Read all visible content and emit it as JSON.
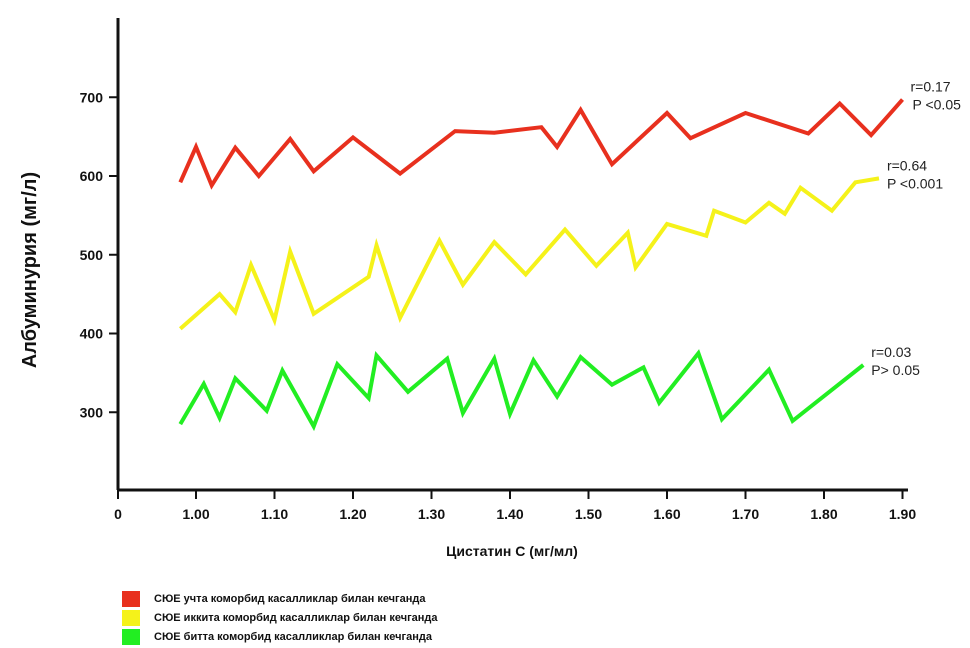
{
  "chart_data": {
    "type": "line",
    "title": "",
    "xlabel": "Цистатин С (мг/мл)",
    "ylabel": "Албуминурия (мг/л)",
    "xlim": [
      0.9,
      1.9
    ],
    "ylim": [
      200,
      800
    ],
    "x_ticks": [
      "0",
      "1.00",
      "1.10",
      "1.20",
      "1.30",
      "1.40",
      "1.50",
      "1.60",
      "1.70",
      "1.80",
      "1.90"
    ],
    "y_ticks": [
      300,
      400,
      500,
      600,
      700
    ],
    "grid": false,
    "legend_position": "bottom-left",
    "series": [
      {
        "name": "СЮЕ учта коморбид касалликлар билан кечганда",
        "color": "#e8301e",
        "annotation": [
          "r=0.17",
          "P <0.05"
        ],
        "x": [
          0.98,
          1.0,
          1.02,
          1.05,
          1.08,
          1.12,
          1.15,
          1.2,
          1.26,
          1.33,
          1.38,
          1.44,
          1.46,
          1.49,
          1.53,
          1.6,
          1.63,
          1.7,
          1.78,
          1.82,
          1.86,
          1.9
        ],
        "y": [
          592,
          637,
          588,
          636,
          600,
          647,
          606,
          649,
          603,
          657,
          655,
          662,
          637,
          684,
          615,
          680,
          648,
          680,
          654,
          692,
          652,
          697
        ]
      },
      {
        "name": "СЮЕ иккита коморбид касалликлар билан кечганда",
        "color": "#f5f21a",
        "annotation": [
          "r=0.64",
          "P <0.001"
        ],
        "x": [
          0.98,
          1.03,
          1.05,
          1.07,
          1.1,
          1.12,
          1.15,
          1.22,
          1.23,
          1.26,
          1.31,
          1.34,
          1.38,
          1.42,
          1.47,
          1.51,
          1.55,
          1.56,
          1.6,
          1.65,
          1.66,
          1.7,
          1.73,
          1.75,
          1.77,
          1.81,
          1.84,
          1.87
        ],
        "y": [
          406,
          450,
          427,
          487,
          417,
          504,
          425,
          472,
          512,
          420,
          518,
          462,
          516,
          475,
          532,
          486,
          528,
          484,
          539,
          524,
          556,
          541,
          566,
          552,
          585,
          556,
          592,
          597
        ]
      },
      {
        "name": "СЮЕ битта коморбид касалликлар билан кечганда",
        "color": "#22ee22",
        "annotation": [
          "r=0.03",
          "P> 0.05"
        ],
        "x": [
          0.98,
          1.01,
          1.03,
          1.05,
          1.09,
          1.11,
          1.15,
          1.18,
          1.22,
          1.23,
          1.27,
          1.32,
          1.34,
          1.38,
          1.4,
          1.43,
          1.46,
          1.49,
          1.53,
          1.57,
          1.59,
          1.64,
          1.67,
          1.73,
          1.76,
          1.85
        ],
        "y": [
          285,
          336,
          293,
          343,
          302,
          353,
          282,
          361,
          318,
          372,
          326,
          368,
          299,
          368,
          298,
          366,
          320,
          370,
          335,
          357,
          312,
          375,
          291,
          354,
          289,
          360
        ]
      }
    ]
  }
}
